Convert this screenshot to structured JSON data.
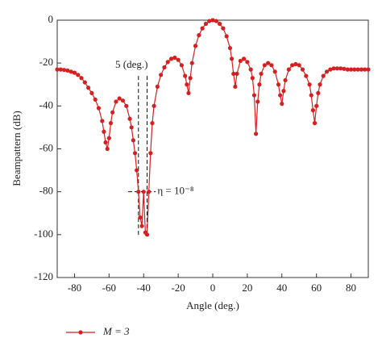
{
  "chart_data": {
    "type": "line",
    "xlabel": "Angle (deg.)",
    "ylabel": "Beampattern (dB)",
    "x": [
      -90,
      -88,
      -86,
      -84,
      -82,
      -80,
      -78,
      -76,
      -74,
      -72,
      -70,
      -68,
      -66,
      -64,
      -63,
      -62,
      -61,
      -60,
      -59,
      -58,
      -56,
      -54,
      -52,
      -50,
      -48,
      -47,
      -46,
      -45,
      -44,
      -43,
      -42,
      -41,
      -40,
      -39,
      -38,
      -37,
      -36,
      -35,
      -34,
      -32,
      -30,
      -28,
      -26,
      -24,
      -22,
      -20,
      -18,
      -16,
      -15,
      -14,
      -13,
      -12,
      -10,
      -8,
      -6,
      -4,
      -2,
      0,
      2,
      4,
      6,
      8,
      10,
      11,
      12,
      13,
      14,
      16,
      18,
      20,
      22,
      23,
      24,
      25,
      26,
      27,
      28,
      30,
      32,
      34,
      36,
      38,
      39,
      40,
      41,
      42,
      44,
      46,
      48,
      50,
      52,
      54,
      56,
      57,
      58,
      59,
      60,
      61,
      62,
      64,
      66,
      68,
      70,
      72,
      74,
      76,
      78,
      80,
      82,
      84,
      86,
      88,
      90
    ],
    "series": [
      {
        "name": "M = 3",
        "color": "#d42020",
        "values": [
          -23,
          -23,
          -23.2,
          -23.5,
          -24,
          -24.5,
          -25.5,
          -27,
          -29,
          -31.5,
          -34,
          -37,
          -41,
          -47,
          -52,
          -57,
          -60,
          -55,
          -48,
          -43,
          -38,
          -36.5,
          -37.5,
          -40,
          -46,
          -50,
          -56,
          -62,
          -70,
          -80,
          -92,
          -96,
          -80,
          -99,
          -100,
          -80,
          -62,
          -48,
          -40,
          -31,
          -25.5,
          -22,
          -19.5,
          -18,
          -17.5,
          -18.5,
          -21,
          -26,
          -30,
          -34,
          -27,
          -20,
          -12,
          -7,
          -3.8,
          -1.7,
          -0.4,
          0,
          -0.4,
          -1.7,
          -3.8,
          -7.5,
          -13,
          -18,
          -25,
          -31,
          -25,
          -19,
          -18,
          -19.5,
          -23,
          -27,
          -35,
          -53,
          -38,
          -30,
          -25,
          -21,
          -20,
          -21,
          -24,
          -30,
          -35,
          -39,
          -33,
          -28,
          -23,
          -21,
          -20.5,
          -21,
          -23,
          -26,
          -30,
          -35,
          -42,
          -48,
          -40,
          -34,
          -30,
          -26,
          -24,
          -23,
          -22.5,
          -22.5,
          -22.5,
          -22.7,
          -23,
          -23,
          -23,
          -23,
          -23,
          -23,
          -23
        ]
      }
    ],
    "xlim": [
      -90,
      90
    ],
    "xticks": [
      -80,
      -60,
      -40,
      -20,
      0,
      20,
      40,
      60,
      80
    ],
    "ylim": [
      -120,
      0
    ],
    "yticks": [
      0,
      -20,
      -40,
      -60,
      -80,
      -100,
      -120
    ],
    "annotations": [
      {
        "text": "5 (deg.)",
        "x": -47,
        "y": -21
      },
      {
        "text": "η = 10⁻⁸",
        "x": -32,
        "y": -80
      }
    ],
    "vlines": [
      {
        "x": -43,
        "y": [
          -26,
          -101
        ]
      },
      {
        "x": -38,
        "y": [
          -26,
          -101
        ]
      }
    ],
    "hlines": [
      {
        "y": -80,
        "x": [
          -49,
          -33
        ]
      }
    ]
  }
}
